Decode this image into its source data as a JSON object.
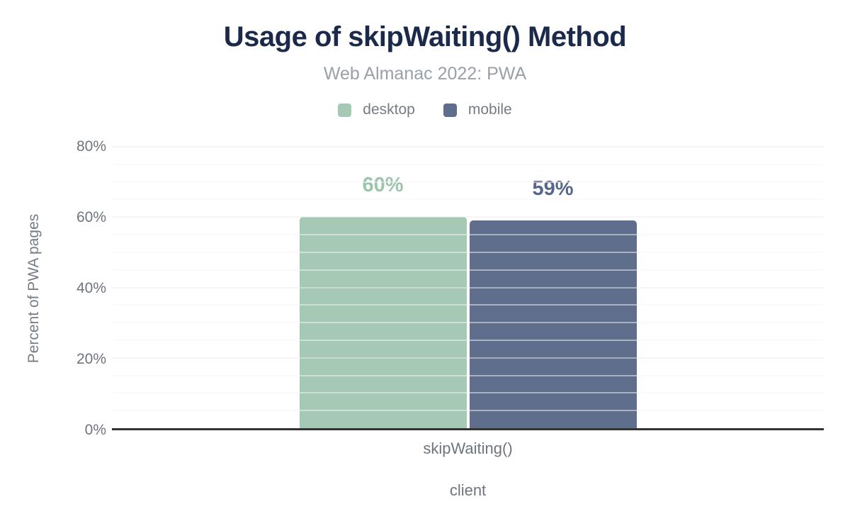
{
  "chart_data": {
    "type": "bar",
    "title": "Usage of skipWaiting() Method",
    "subtitle": "Web Almanac 2022: PWA",
    "categories": [
      "skipWaiting()"
    ],
    "series": [
      {
        "name": "desktop",
        "values": [
          60
        ],
        "color": "#a5c9b4",
        "label_color": "#9cc5ab"
      },
      {
        "name": "mobile",
        "values": [
          59
        ],
        "color": "#5f6e8d",
        "label_color": "#56678a"
      }
    ],
    "value_labels": [
      "60%",
      "59%"
    ],
    "xlabel": "client",
    "ylabel": "Percent of PWA pages",
    "ylim": [
      0,
      80
    ],
    "yticks": [
      "0%",
      "20%",
      "40%",
      "60%",
      "80%"
    ],
    "ytick_values": [
      0,
      20,
      40,
      60,
      80
    ],
    "minor_gridline_step": 5,
    "major_gridline_step": 20,
    "grid": true,
    "legend_position": "top",
    "colors": {
      "title": "#1b2a4a",
      "subtitle": "#9aa0a8",
      "axis_text": "#6e757e",
      "baseline": "#333333",
      "major_grid": "#ebebee",
      "minor_grid": "#f5f5f7",
      "background": "#ffffff"
    }
  }
}
